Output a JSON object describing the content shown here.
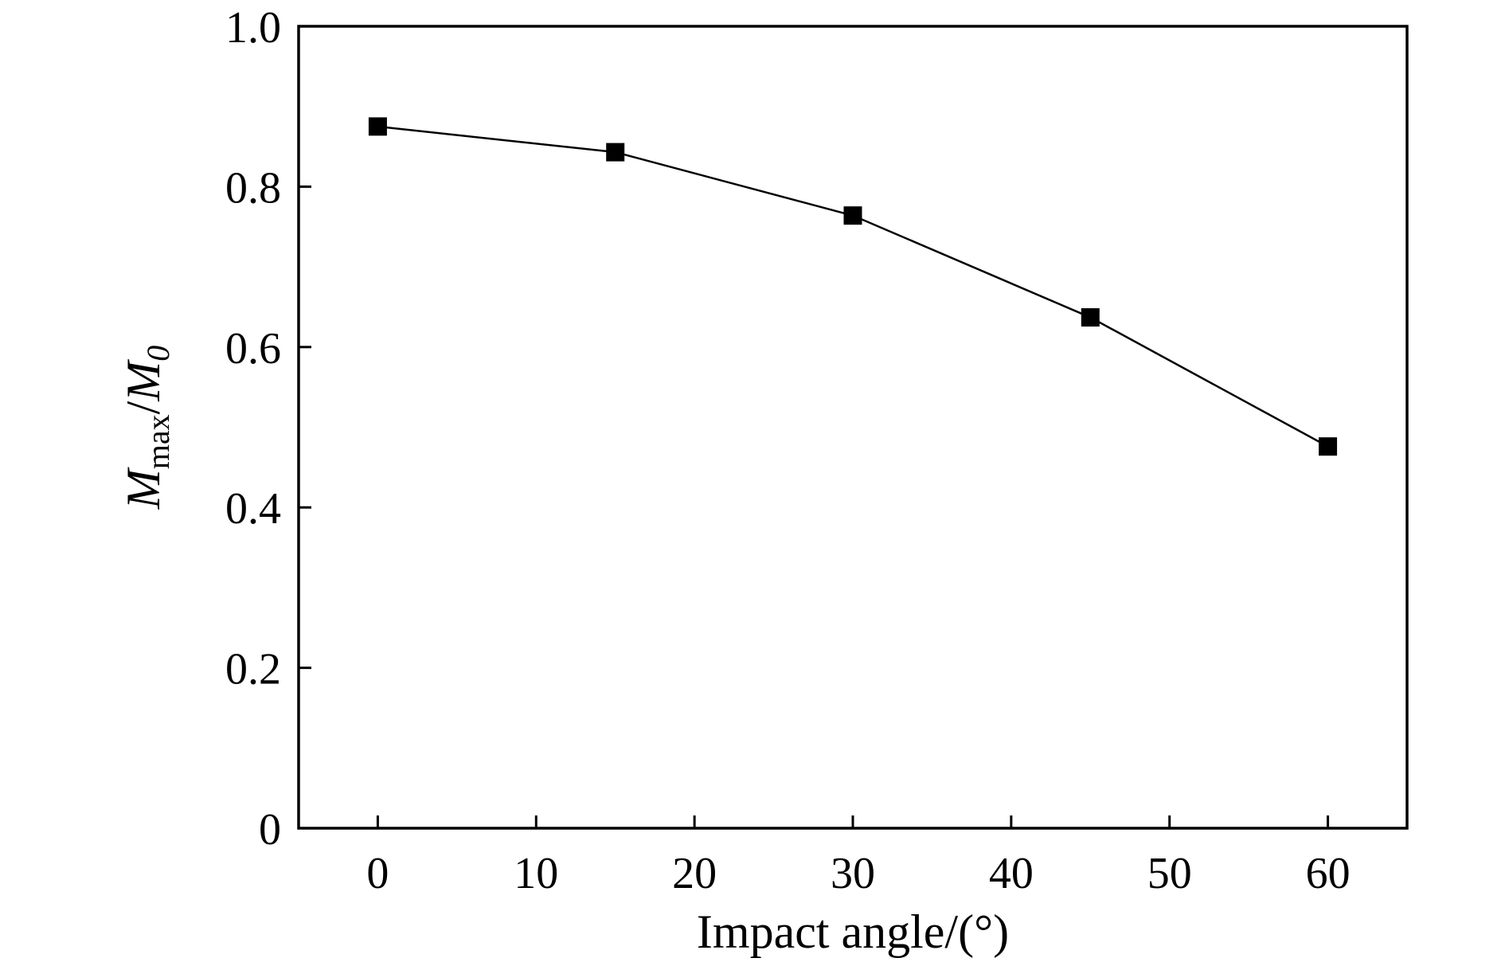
{
  "chart_data": {
    "type": "line",
    "xlabel": "Impact angle/(°)",
    "ylabel": {
      "main": "M",
      "sub": "max",
      "sep": "/",
      "main2": "M",
      "sub2": "0"
    },
    "xlim": [
      -5,
      65
    ],
    "ylim": [
      0,
      1.0
    ],
    "xticks": [
      0,
      10,
      20,
      30,
      40,
      50,
      60
    ],
    "xtick_labels": [
      "0",
      "10",
      "20",
      "30",
      "40",
      "50",
      "60"
    ],
    "yticks": [
      0,
      0.2,
      0.4,
      0.6,
      0.8,
      1.0
    ],
    "ytick_labels": [
      "0",
      "0.2",
      "0.4",
      "0.6",
      "0.8",
      "1.0"
    ],
    "grid": false,
    "series": [
      {
        "x": [
          0,
          15,
          30,
          45,
          60
        ],
        "y": [
          0.875,
          0.843,
          0.764,
          0.637,
          0.476
        ],
        "marker": "square",
        "color": "#000000"
      }
    ]
  }
}
